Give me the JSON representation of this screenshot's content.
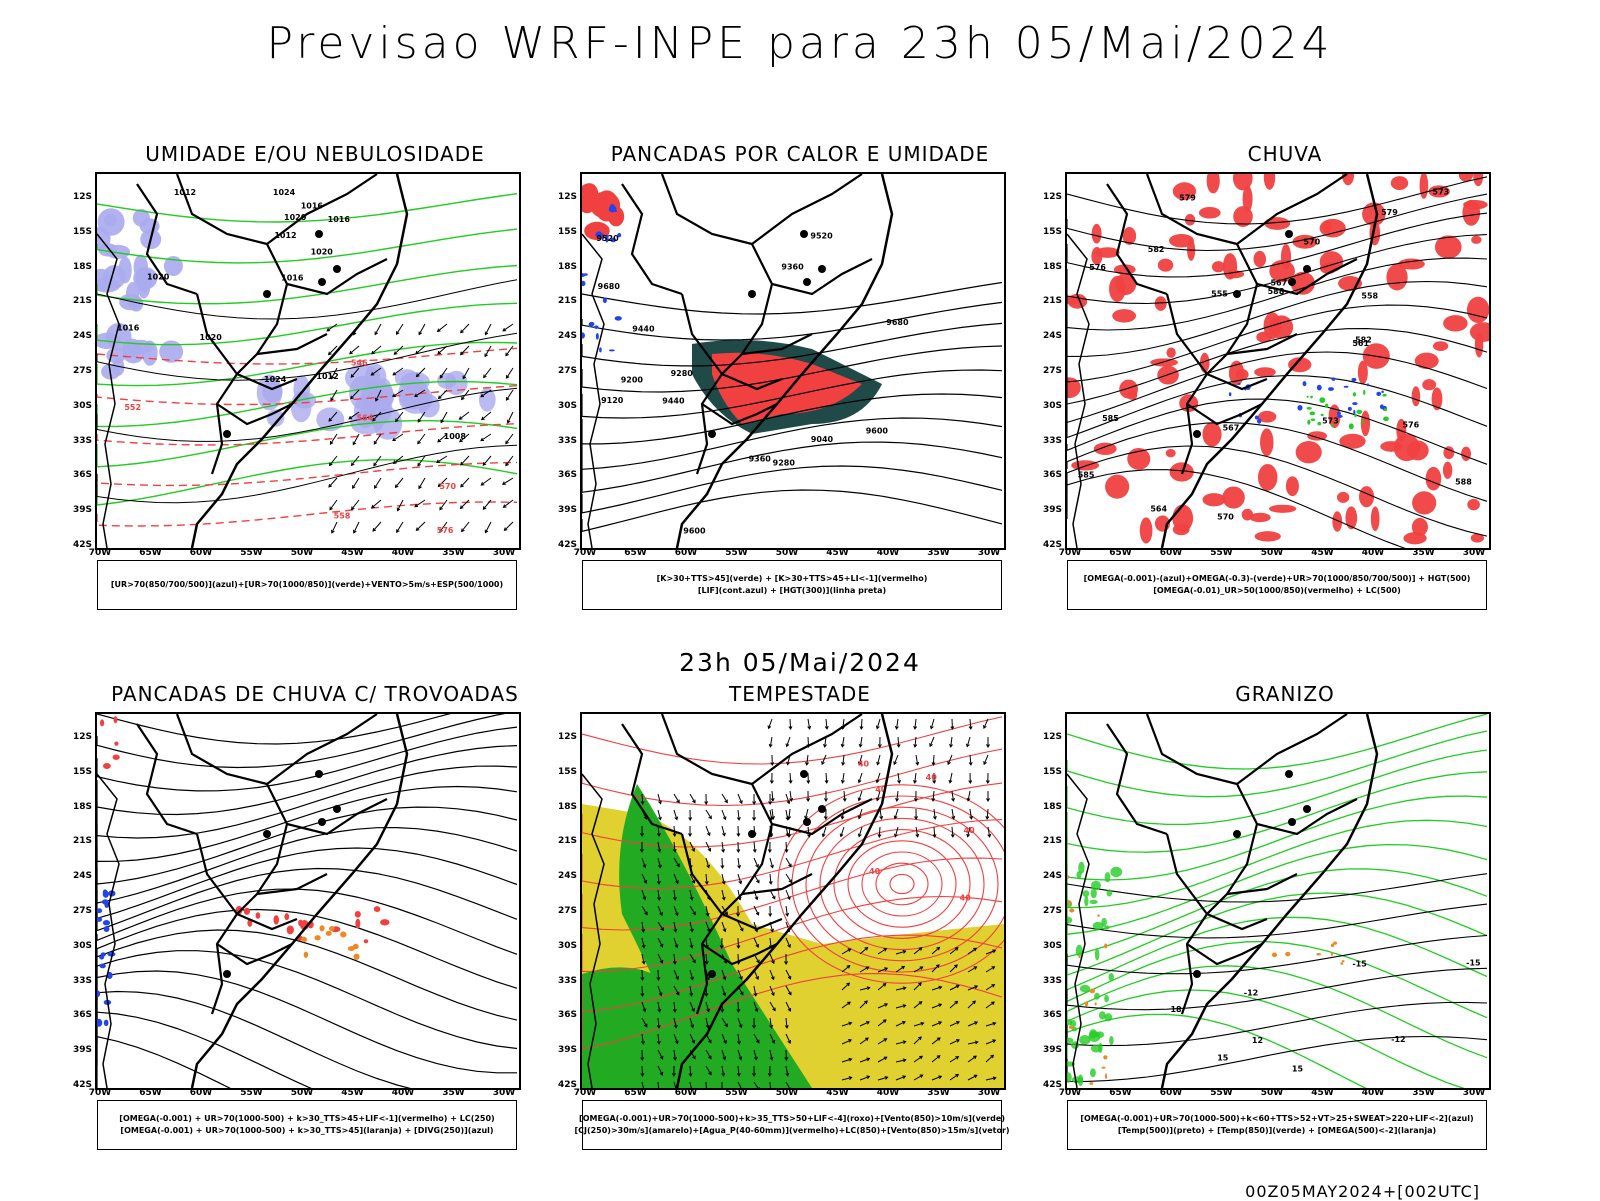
{
  "title": "Previsao WRF-INPE  para 23h 05/Mai/2024",
  "mid_title": "23h 05/Mai/2024",
  "footer": "00Z05MAY2024+[002UTC]",
  "lat_labels": [
    "12S",
    "15S",
    "18S",
    "21S",
    "24S",
    "27S",
    "30S",
    "33S",
    "36S",
    "39S",
    "42S"
  ],
  "lon_labels": [
    "70W",
    "65W",
    "60W",
    "55W",
    "50W",
    "45W",
    "40W",
    "35W",
    "30W"
  ],
  "colors": {
    "red": "#f04040",
    "green": "#22cc22",
    "blue": "#2244ee",
    "lavender": "#aaaaee",
    "darkteal": "#1f4a48",
    "yellow": "#e0d030",
    "orange": "#ee8822",
    "deepgreen": "#22aa22"
  },
  "panels": [
    {
      "title": "UMIDADE E/OU NEBULOSIDADE",
      "legend": [
        "[UR>70(850/700/500)](azul)+[UR>70(1000/850)](verde)+VENTO>5m/s+ESP(500/1000)"
      ],
      "contour_labels": [
        "1016",
        "1012",
        "1016",
        "1020",
        "1020",
        "1012",
        "1020",
        "1016",
        "1024",
        "1016",
        "1020",
        "1024",
        "1008",
        "1012",
        "576",
        "570",
        "558",
        "552",
        "546",
        "564"
      ]
    },
    {
      "title": "PANCADAS POR CALOR E UMIDADE",
      "legend": [
        "[K>30+TTS>45](verde) + [K>30+TTS>45+LI<-1](vermelho)",
        "[LIF](cont.azul) + [HGT(300)](linha preta)"
      ],
      "contour_labels": [
        "9680",
        "9600",
        "9520",
        "9440",
        "9360",
        "9280",
        "9200",
        "9120",
        "9040",
        "9680",
        "9600",
        "9520",
        "9440",
        "9360",
        "9280"
      ]
    },
    {
      "title": "CHUVA",
      "legend": [
        "[OMEGA(-0.001)-(azul)+OMEGA(-0.3)-(verde)+UR>70(1000/850/700/500)] + HGT(500)",
        "[OMEGA(-0.01)_UR>50(1000/850)(vermelho) + LC(500)"
      ],
      "contour_labels": [
        "588",
        "585",
        "582",
        "579",
        "576",
        "573",
        "570",
        "567",
        "564",
        "561",
        "558",
        "555",
        "588",
        "585",
        "582",
        "579",
        "576",
        "573",
        "570",
        "567"
      ]
    },
    {
      "title": "PANCADAS DE CHUVA C/ TROVOADAS",
      "legend": [
        "[OMEGA(-0.001) + UR>70(1000-500) + k>30_TTS>45+LIF<-1](vermelho) + LC(250)",
        "[OMEGA(-0.001) + UR>70(1000-500) + k>30_TTS>45](laranja) + [DIVG(250)](azul)"
      ],
      "contour_labels": []
    },
    {
      "title": "TEMPESTADE",
      "legend": [
        "[OMEGA(-0.001)+UR>70(1000-500)+k>35_TTS>50+LIF<-4](roxo)+[Vento(850)>10m/s](verde)",
        "[CJ(250)>30m/s](amarelo)+[Agua_P(40-60mm)](vermelho)+LC(850)+[Vento(850)>15m/s](vetor)"
      ],
      "contour_labels": [
        "40",
        "40",
        "40",
        "40",
        "40",
        "40"
      ]
    },
    {
      "title": "GRANIZO",
      "legend": [
        "[OMEGA(-0.001)+UR>70(1000-500)+k<60+TTS>52+VT>25+SWEAT>220+LIF<-2](azul)",
        "[Temp(500)](preto) + [Temp(850)](verde) + [OMEGA(500)<-2](laranja)"
      ],
      "contour_labels": [
        "-12",
        "-15",
        "-12",
        "-15",
        "15",
        "15",
        "12",
        "18"
      ]
    }
  ]
}
